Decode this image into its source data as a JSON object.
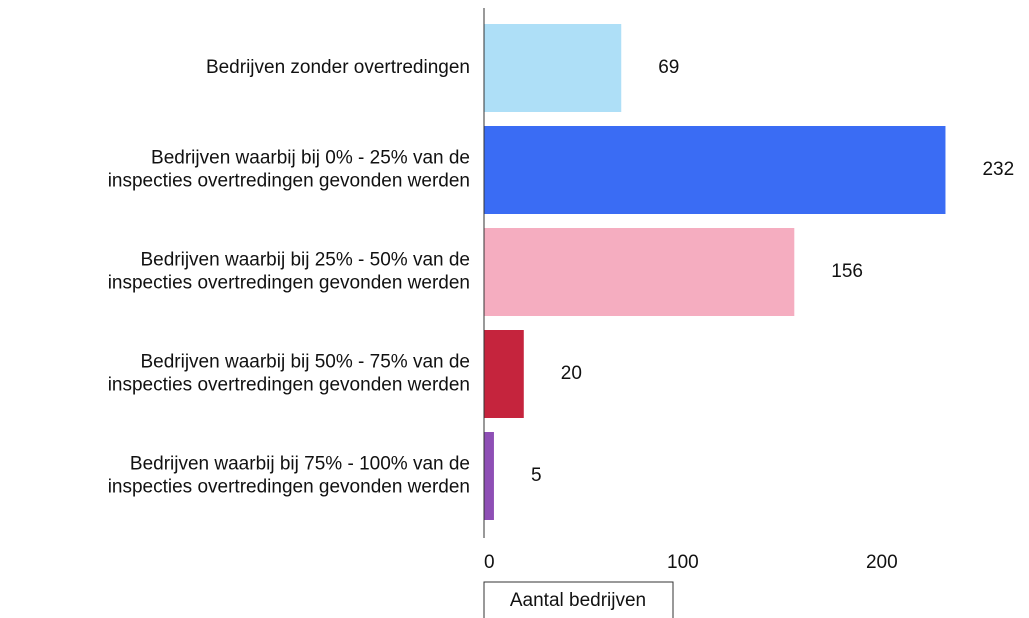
{
  "chart_data": {
    "type": "bar",
    "orientation": "horizontal",
    "categories": [
      "Bedrijven zonder overtredingen",
      "Bedrijven waarbij bij 0% - 25% van de\ninspecties overtredingen gevonden werden",
      "Bedrijven waarbij bij 25% - 50% van de\ninspecties overtredingen gevonden werden",
      "Bedrijven waarbij bij 50% - 75% van de\ninspecties overtredingen gevonden werden",
      "Bedrijven waarbij bij 75% - 100% van de\ninspecties overtredingen gevonden werden"
    ],
    "values": [
      69,
      232,
      156,
      20,
      5
    ],
    "colors": [
      "#aedff7",
      "#3a6cf4",
      "#f5adc0",
      "#c5243d",
      "#8e4fb5"
    ],
    "x_label": "Aantal bedrijven",
    "xlim": [
      0,
      275
    ],
    "xticks": [
      0,
      100,
      200
    ],
    "grid": false
  }
}
